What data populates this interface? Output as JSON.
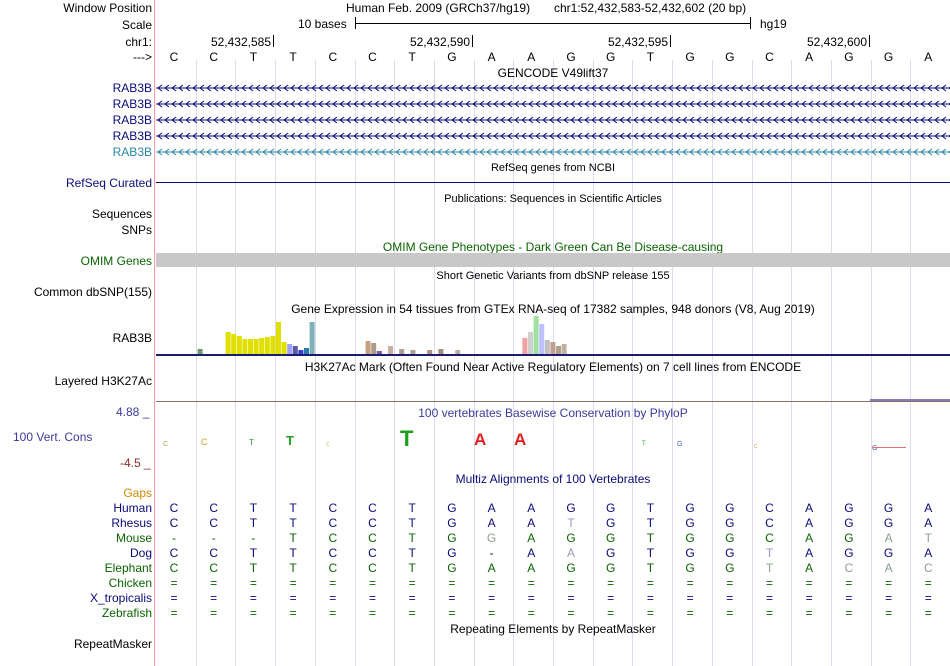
{
  "header": {
    "window_position_label": "Window Position",
    "scale_label": "Scale",
    "chrom_label": "chr1:",
    "strand_label": "--->",
    "assembly": "Human Feb. 2009 (GRCh37/hg19)",
    "range": "chr1:52,432,583-52,432,602 (20 bp)",
    "scale_text": "10 bases",
    "db": "hg19",
    "ticks": [
      "52,432,585",
      "52,432,590",
      "52,432,595",
      "52,432,600"
    ],
    "sequence": [
      "C",
      "C",
      "T",
      "T",
      "C",
      "C",
      "T",
      "G",
      "A",
      "A",
      "G",
      "G",
      "T",
      "G",
      "G",
      "C",
      "A",
      "G",
      "G",
      "A"
    ]
  },
  "tracks": {
    "gencode": {
      "title": "GENCODE V49lift37",
      "items": [
        {
          "label": "RAB3B",
          "color": "#0a0a78"
        },
        {
          "label": "RAB3B",
          "color": "#0a0a78"
        },
        {
          "label": "RAB3B",
          "color": "#0a0a78"
        },
        {
          "label": "RAB3B",
          "color": "#0a0a78"
        },
        {
          "label": "RAB3B",
          "color": "#2a86a8"
        }
      ]
    },
    "refseq": {
      "title": "RefSeq genes from NCBI",
      "label": "RefSeq Curated",
      "color": "#0c0c78"
    },
    "publications": {
      "title": "Publications: Sequences in Scientific Articles",
      "labels": [
        "Sequences",
        "SNPs"
      ]
    },
    "omim": {
      "title": "OMIM Gene Phenotypes - Dark Green Can Be Disease-causing",
      "label": "OMIM Genes",
      "color": "#0a6400",
      "bar_color": "#c8c8c8"
    },
    "dbsnp": {
      "title": "Short Genetic Variants from dbSNP release 155",
      "label": "Common dbSNP(155)"
    },
    "gtex": {
      "title": "Gene Expression in 54 tissues from GTEx RNA-seq of 17382 samples, 948 donors (V8, Aug 2019)",
      "label": "RAB3B"
    },
    "h3k27ac": {
      "title": "H3K27Ac Mark (Often Found Near Active Regulatory Elements) on 7 cell lines from ENCODE",
      "label": "Layered H3K27Ac"
    },
    "phylop": {
      "title": "100 vertebrates Basewise Conservation by PhyloP",
      "label": "100 Vert. Cons",
      "max": "4.88 _",
      "min": "-4.5 _",
      "title_color": "#3a3a9a",
      "label_color": "#3a3a9a",
      "max_color": "#3a3a9a",
      "min_color": "#8a2a2a"
    },
    "multiz": {
      "title": "Multiz Alignments of 100 Vertebrates",
      "gaps_label": "Gaps",
      "gaps_color": "#d08a00",
      "title_color": "#0a0a78",
      "species": [
        {
          "name": "Human",
          "color": "#0a0a78",
          "seq": [
            "C",
            "C",
            "T",
            "T",
            "C",
            "C",
            "T",
            "G",
            "A",
            "A",
            "G",
            "G",
            "T",
            "G",
            "G",
            "C",
            "A",
            "G",
            "G",
            "A"
          ]
        },
        {
          "name": "Rhesus",
          "color": "#0a0a78",
          "seq": [
            "C",
            "C",
            "T",
            "T",
            "C",
            "C",
            "T",
            "G",
            "A",
            "A",
            "T",
            "G",
            "T",
            "G",
            "G",
            "C",
            "A",
            "G",
            "G",
            "A"
          ]
        },
        {
          "name": "Mouse",
          "color": "#0a6400",
          "seq": [
            "-",
            "-",
            "-",
            "T",
            "C",
            "C",
            "T",
            "G",
            "G",
            "A",
            "G",
            "G",
            "T",
            "G",
            "G",
            "C",
            "A",
            "G",
            "A",
            "T"
          ]
        },
        {
          "name": "Dog",
          "color": "#0a0a78",
          "seq": [
            "C",
            "C",
            "T",
            "T",
            "C",
            "C",
            "T",
            "G",
            "-",
            "A",
            "A",
            "G",
            "T",
            "G",
            "G",
            "T",
            "A",
            "G",
            "G",
            "A"
          ]
        },
        {
          "name": "Elephant",
          "color": "#0a6400",
          "seq": [
            "C",
            "C",
            "T",
            "T",
            "C",
            "C",
            "T",
            "G",
            "A",
            "A",
            "G",
            "G",
            "T",
            "G",
            "G",
            "T",
            "A",
            "C",
            "A",
            "C"
          ]
        },
        {
          "name": "Chicken",
          "color": "#0a6400",
          "seq": [
            "=",
            "=",
            "=",
            "=",
            "=",
            "=",
            "=",
            "=",
            "=",
            "=",
            "=",
            "=",
            "=",
            "=",
            "=",
            "=",
            "=",
            "=",
            "=",
            "="
          ]
        },
        {
          "name": "X_tropicalis",
          "color": "#0a0a78",
          "seq": [
            "=",
            "=",
            "=",
            "=",
            "=",
            "=",
            "=",
            "=",
            "=",
            "=",
            "=",
            "=",
            "=",
            "=",
            "=",
            "=",
            "=",
            "=",
            "=",
            "="
          ]
        },
        {
          "name": "Zebrafish",
          "color": "#0a6400",
          "seq": [
            "=",
            "=",
            "=",
            "=",
            "=",
            "=",
            "=",
            "=",
            "=",
            "=",
            "=",
            "=",
            "=",
            "=",
            "=",
            "=",
            "=",
            "=",
            "=",
            "="
          ]
        }
      ]
    },
    "repeatmasker": {
      "title": "Repeating Elements by RepeatMasker",
      "label": "RepeatMasker"
    }
  }
}
